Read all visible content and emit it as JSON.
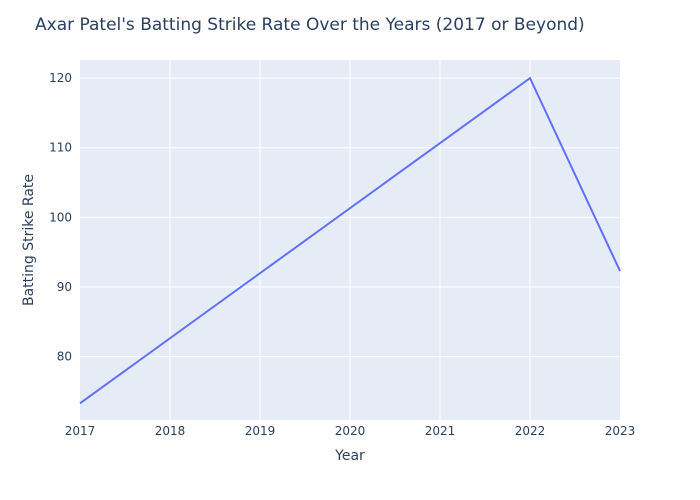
{
  "chart_data": {
    "type": "line",
    "title": "Axar Patel's Batting Strike Rate Over the Years (2017 or Beyond)",
    "xlabel": "Year",
    "ylabel": "Batting Strike Rate",
    "x": [
      2017,
      2022,
      2023
    ],
    "series": [
      {
        "values": [
          73.3,
          120.0,
          92.3
        ],
        "color": "#636efa"
      }
    ],
    "xlim": [
      2017,
      2023
    ],
    "ylim": [
      70.9,
      122.6
    ],
    "xticks": [
      2017,
      2018,
      2019,
      2020,
      2021,
      2022,
      2023
    ],
    "yticks": [
      80,
      90,
      100,
      110,
      120
    ],
    "grid": true,
    "plot_bg": "#e5ecf6"
  }
}
